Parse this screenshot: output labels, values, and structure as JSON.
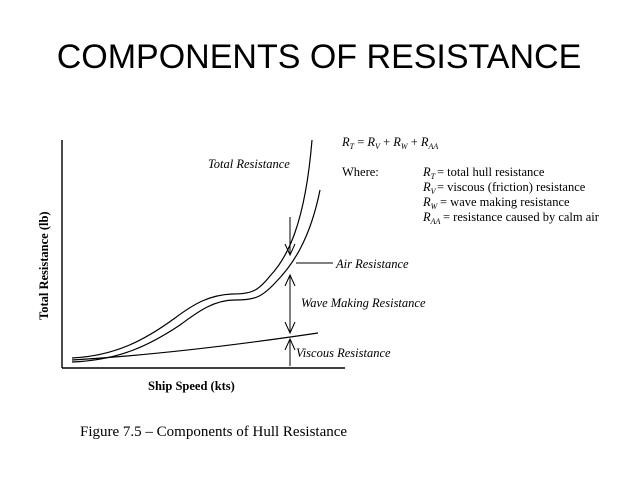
{
  "title": "COMPONENTS OF RESISTANCE",
  "diagram": {
    "y_axis_label": "Total Resistance (lb)",
    "x_axis_label": "Ship Speed (kts)",
    "curve_labels": {
      "total": "Total Resistance",
      "air": "Air Resistance",
      "wave": "Wave Making Resistance",
      "viscous": "Viscous Resistance"
    },
    "formula": {
      "equation": "R_T = R_V + R_W + R_AA",
      "where_label": "Where:",
      "definitions": [
        {
          "symbol": "R_T",
          "text": "= total hull resistance"
        },
        {
          "symbol": "R_V",
          "text": "= viscous (friction) resistance"
        },
        {
          "symbol": "R_W",
          "text": "= wave making resistance"
        },
        {
          "symbol": "R_AA",
          "text": "= resistance caused by calm air"
        }
      ]
    }
  },
  "caption": "Figure 7.5 – Components of Hull Resistance"
}
